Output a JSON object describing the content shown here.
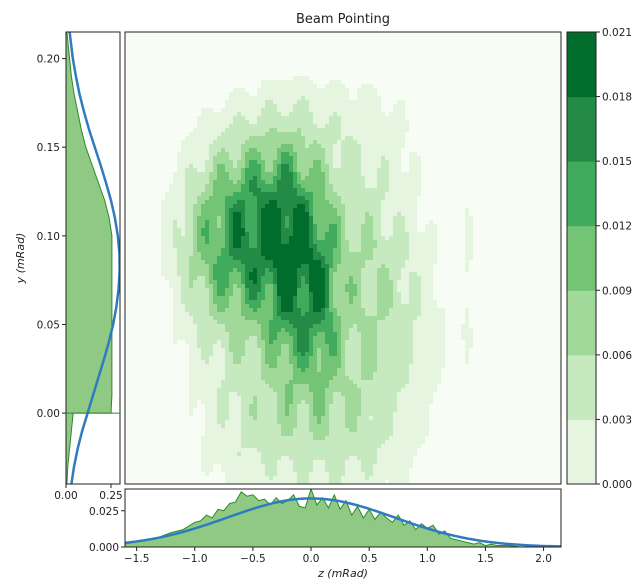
{
  "chart_data": [
    {
      "type": "heatmap",
      "title": "Beam Pointing",
      "xlabel": "z (mRad)",
      "ylabel": "y (mRad)",
      "xlim": [
        -1.6,
        2.15
      ],
      "ylim": [
        -0.04,
        0.215
      ],
      "colormap": [
        "#f7fcf5",
        "#e5f5e0",
        "#c7e9c0",
        "#a1d99b",
        "#74c476",
        "#41ab5d",
        "#238b45",
        "#006d2c",
        "#00441b"
      ],
      "colorbar": {
        "levels": [
          0.0,
          0.003,
          0.006,
          0.009,
          0.012,
          0.015,
          0.018,
          0.021
        ],
        "tick_labels": [
          "0.000",
          "0.003",
          "0.006",
          "0.009",
          "0.012",
          "0.015",
          "0.018",
          "0.021"
        ]
      },
      "blobs": [
        {
          "z": -0.45,
          "y": 0.105,
          "sz": 0.42,
          "sy": 0.038,
          "amp": 0.0215
        },
        {
          "z": -0.15,
          "y": 0.075,
          "sz": 0.15,
          "sy": 0.045,
          "amp": 0.0105
        },
        {
          "z": 0.1,
          "y": 0.062,
          "sz": 0.1,
          "sy": 0.035,
          "amp": 0.0085
        },
        {
          "z": -0.2,
          "y": 0.03,
          "sz": 0.55,
          "sy": 0.06,
          "amp": 0.006
        },
        {
          "z": 0.45,
          "y": 0.04,
          "sz": 0.4,
          "sy": 0.06,
          "amp": 0.0048
        },
        {
          "z": 0.55,
          "y": 0.1,
          "sz": 0.25,
          "sy": 0.05,
          "amp": 0.0038
        },
        {
          "z": 0.9,
          "y": 0.05,
          "sz": 0.3,
          "sy": 0.05,
          "amp": 0.0032
        },
        {
          "z": -0.6,
          "y": -0.01,
          "sz": 0.3,
          "sy": 0.03,
          "amp": 0.0036
        },
        {
          "z": 0.25,
          "y": -0.015,
          "sz": 0.4,
          "sy": 0.03,
          "amp": 0.0034
        },
        {
          "z": 0.2,
          "y": 0.165,
          "sz": 0.55,
          "sy": 0.025,
          "amp": 0.0034
        },
        {
          "z": -0.85,
          "y": 0.08,
          "sz": 0.25,
          "sy": 0.035,
          "amp": 0.0036
        },
        {
          "z": 1.35,
          "y": 0.085,
          "sz": 0.05,
          "sy": 0.05,
          "amp": 0.0032
        }
      ]
    },
    {
      "type": "area",
      "orientation": "horizontal",
      "xlim": [
        0.0,
        0.3
      ],
      "xticks": [
        0.0,
        0.25
      ],
      "xtick_labels": [
        "0.00",
        "0.25"
      ],
      "ylim": [
        -0.04,
        0.215
      ],
      "yticks": [
        0.0,
        0.05,
        0.1,
        0.15,
        0.2
      ],
      "ytick_labels": [
        "0.00",
        "0.05",
        "0.10",
        "0.15",
        "0.20"
      ],
      "hist_y": [
        -0.04,
        -0.03,
        -0.02,
        -0.01,
        0.0,
        0.0,
        0.01,
        0.02,
        0.03,
        0.04,
        0.05,
        0.06,
        0.07,
        0.08,
        0.09,
        0.1,
        0.11,
        0.12,
        0.13,
        0.14,
        0.15,
        0.16,
        0.17,
        0.18,
        0.19,
        0.2,
        0.21,
        0.215
      ],
      "hist_x": [
        0.005,
        0.01,
        0.02,
        0.03,
        0.04,
        0.25,
        0.255,
        0.255,
        0.255,
        0.255,
        0.255,
        0.255,
        0.255,
        0.255,
        0.255,
        0.255,
        0.24,
        0.215,
        0.18,
        0.145,
        0.11,
        0.085,
        0.065,
        0.045,
        0.03,
        0.02,
        0.01,
        0.005
      ],
      "fit_y": [
        -0.04,
        -0.03,
        -0.02,
        -0.01,
        0.0,
        0.01,
        0.02,
        0.03,
        0.04,
        0.05,
        0.06,
        0.07,
        0.08,
        0.09,
        0.1,
        0.11,
        0.12,
        0.13,
        0.14,
        0.15,
        0.16,
        0.17,
        0.18,
        0.19,
        0.2,
        0.21,
        0.215
      ],
      "fit_x": [
        0.03,
        0.045,
        0.065,
        0.09,
        0.12,
        0.15,
        0.18,
        0.21,
        0.238,
        0.262,
        0.28,
        0.292,
        0.298,
        0.297,
        0.288,
        0.272,
        0.25,
        0.222,
        0.192,
        0.16,
        0.128,
        0.1,
        0.075,
        0.055,
        0.038,
        0.026,
        0.02
      ]
    },
    {
      "type": "area",
      "xlim": [
        -1.6,
        2.15
      ],
      "xticks": [
        -1.5,
        -1.0,
        -0.5,
        0.0,
        0.5,
        1.0,
        1.5,
        2.0
      ],
      "xtick_labels": [
        "−1.5",
        "−1.0",
        "−0.5",
        "0.0",
        "0.5",
        "1.0",
        "1.5",
        "2.0"
      ],
      "ylim": [
        0.0,
        0.04
      ],
      "yticks": [
        0.0,
        0.025
      ],
      "ytick_labels": [
        "0.000",
        "0.025"
      ],
      "hist_x": [
        -1.6,
        -1.5,
        -1.4,
        -1.3,
        -1.2,
        -1.1,
        -1.0,
        -0.95,
        -0.9,
        -0.85,
        -0.8,
        -0.75,
        -0.7,
        -0.65,
        -0.6,
        -0.55,
        -0.5,
        -0.45,
        -0.4,
        -0.35,
        -0.3,
        -0.25,
        -0.2,
        -0.15,
        -0.1,
        -0.05,
        0.0,
        0.05,
        0.1,
        0.15,
        0.2,
        0.25,
        0.3,
        0.35,
        0.4,
        0.45,
        0.5,
        0.55,
        0.6,
        0.65,
        0.7,
        0.75,
        0.8,
        0.85,
        0.9,
        0.95,
        1.0,
        1.05,
        1.1,
        1.15,
        1.2,
        1.25,
        1.3,
        1.35,
        1.4,
        1.45,
        1.5,
        1.55,
        1.6,
        1.7,
        1.8,
        1.9,
        2.0,
        2.15
      ],
      "hist_y": [
        0.002,
        0.004,
        0.005,
        0.007,
        0.01,
        0.012,
        0.017,
        0.018,
        0.022,
        0.02,
        0.026,
        0.025,
        0.03,
        0.031,
        0.038,
        0.035,
        0.036,
        0.032,
        0.033,
        0.029,
        0.034,
        0.03,
        0.032,
        0.036,
        0.028,
        0.027,
        0.04,
        0.029,
        0.034,
        0.027,
        0.036,
        0.026,
        0.032,
        0.022,
        0.028,
        0.02,
        0.026,
        0.019,
        0.024,
        0.02,
        0.017,
        0.022,
        0.015,
        0.018,
        0.012,
        0.016,
        0.013,
        0.015,
        0.009,
        0.011,
        0.006,
        0.005,
        0.004,
        0.003,
        0.002,
        0.003,
        0.001,
        0.002,
        0.001,
        0.001,
        0.0,
        0.0,
        0.0,
        0.0
      ],
      "fit_mu": 0.0,
      "fit_sigma": 0.72,
      "fit_amp": 0.0335
    }
  ]
}
